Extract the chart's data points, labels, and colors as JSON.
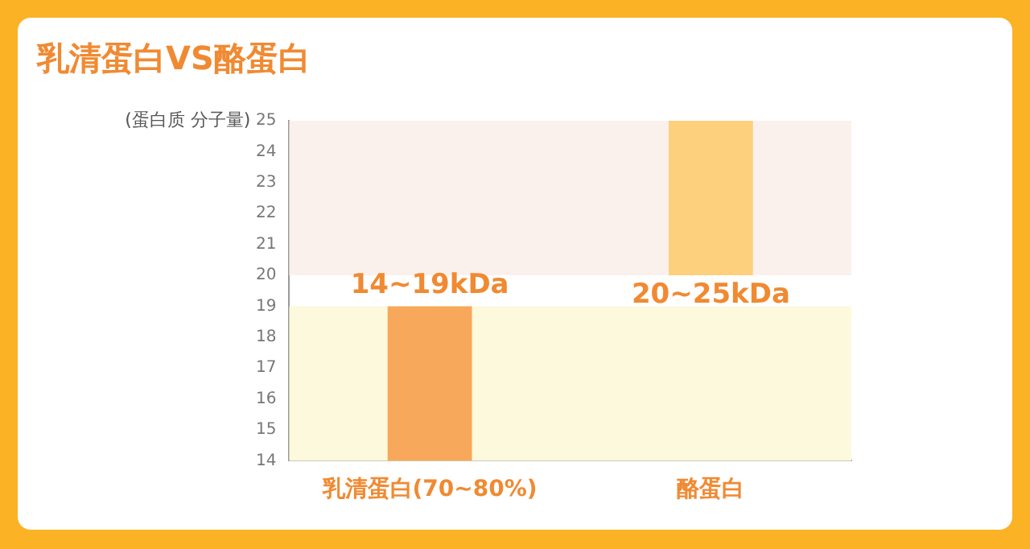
{
  "chart_data": {
    "type": "bar",
    "title": "乳清蛋白VS酪蛋白",
    "ylabel": "(蛋白质 分子量)",
    "categories": [
      "乳清蛋白(70~80%)",
      "酪蛋白"
    ],
    "base": [
      14,
      20
    ],
    "values": [
      5,
      5
    ],
    "colors": [
      "#f8a85a",
      "#fdd07e"
    ],
    "ylim": [
      14,
      25
    ],
    "yticks": [
      14,
      15,
      16,
      17,
      18,
      19,
      20,
      21,
      22,
      23,
      24,
      25
    ],
    "bands": [
      {
        "axis": "y",
        "from": 14,
        "to": 19,
        "color": "#fdf9dc"
      },
      {
        "axis": "y",
        "from": 20,
        "to": 25,
        "color": "#fbf1ec"
      }
    ],
    "annotations": [
      {
        "text": "14~19kDa",
        "x": "乳清蛋白(70~80%)",
        "y": 19
      },
      {
        "text": "20~25kDa",
        "x": "酪蛋白",
        "y": 20
      }
    ],
    "grid": false,
    "legend": false
  }
}
